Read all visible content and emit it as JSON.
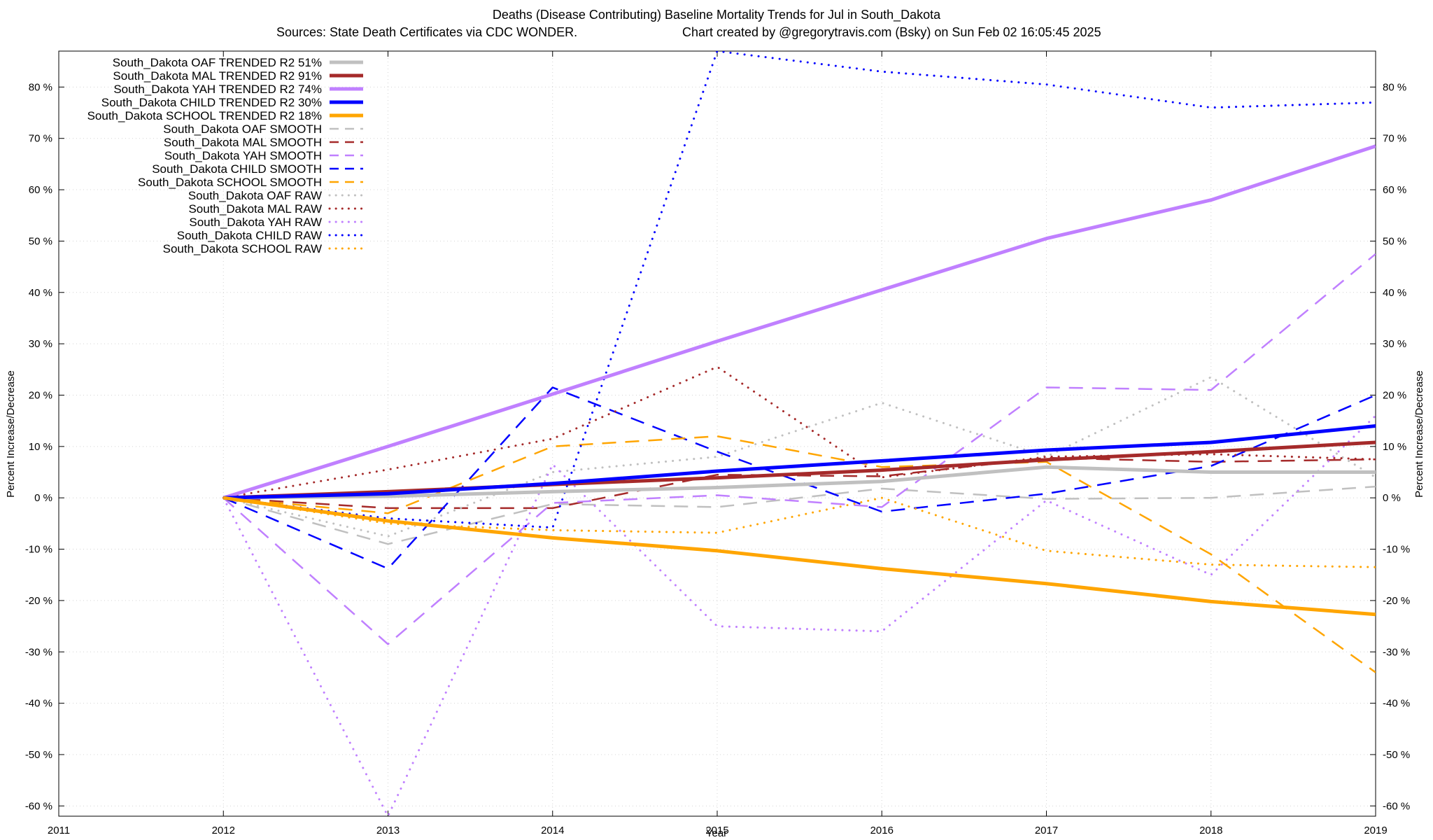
{
  "chart_data": {
    "type": "line",
    "title": "Deaths (Disease Contributing)  Baseline Mortality Trends for Jul in South_Dakota",
    "subtitle_left": "Sources: State Death Certificates via CDC WONDER.",
    "subtitle_right": "Chart created by @gregorytravis.com (Bsky) on Sun Feb 02 16:05:45 2025",
    "xlabel": "Year",
    "ylabel": "Percent Increase/Decrease",
    "y2label": "Percent Increase/Decrease",
    "xlim": [
      2011,
      2019
    ],
    "ylim": [
      -62,
      87
    ],
    "x_ticks": [
      "2011",
      "2012",
      "2013",
      "2014",
      "2015",
      "2016",
      "2017",
      "2018",
      "2019"
    ],
    "y_ticks": [
      "-60 %",
      "-50 %",
      "-40 %",
      "-30 %",
      "-20 %",
      "-10 %",
      "0 %",
      "10 %",
      "20 %",
      "30 %",
      "40 %",
      "50 %",
      "60 %",
      "70 %",
      "80 %"
    ],
    "x": [
      2012,
      2013,
      2014,
      2015,
      2016,
      2017,
      2018,
      2019
    ],
    "grid": true,
    "legend_position": "top-left",
    "series": [
      {
        "name": "South_Dakota OAF TRENDED R2  51%",
        "style": "solid",
        "color": "#c0c0c0",
        "values": [
          0,
          0.3,
          1.2,
          2.0,
          3.2,
          6.0,
          5.0,
          5.0
        ]
      },
      {
        "name": "South_Dakota MAL TRENDED R2  91%",
        "style": "solid",
        "color": "#a52a2a",
        "values": [
          0,
          1.2,
          2.6,
          3.9,
          5.4,
          7.4,
          9.0,
          10.8
        ]
      },
      {
        "name": "South_Dakota YAH TRENDED R2  74%",
        "style": "solid",
        "color": "#c080ff",
        "values": [
          0,
          10.0,
          20.2,
          30.5,
          40.5,
          50.5,
          58.0,
          68.5
        ]
      },
      {
        "name": "South_Dakota CHILD TRENDED R2  30%",
        "style": "solid",
        "color": "#0000ff",
        "values": [
          0,
          0.8,
          2.8,
          5.2,
          7.2,
          9.3,
          10.8,
          14.0
        ]
      },
      {
        "name": "South_Dakota SCHOOL TRENDED R2  18%",
        "style": "solid",
        "color": "#ffa500",
        "values": [
          0,
          -4.5,
          -7.8,
          -10.3,
          -13.8,
          -16.7,
          -20.2,
          -22.7
        ]
      },
      {
        "name": "South_Dakota OAF SMOOTH",
        "style": "dashed",
        "color": "#c0c0c0",
        "values": [
          0,
          -9.0,
          -1.2,
          -1.8,
          1.8,
          -0.2,
          0,
          2.2
        ]
      },
      {
        "name": "South_Dakota MAL SMOOTH",
        "style": "dashed",
        "color": "#a52a2a",
        "values": [
          0,
          -2.0,
          -2.0,
          4.5,
          4.2,
          7.8,
          7.0,
          7.5
        ]
      },
      {
        "name": "South_Dakota YAH SMOOTH",
        "style": "dashed",
        "color": "#c080ff",
        "values": [
          0,
          -28.5,
          -1.0,
          0.5,
          -1.8,
          21.5,
          21.0,
          47.5
        ]
      },
      {
        "name": "South_Dakota CHILD SMOOTH",
        "style": "dashed",
        "color": "#0000ff",
        "values": [
          0,
          -13.8,
          21.5,
          9.0,
          -2.7,
          0.8,
          6.2,
          20.0
        ]
      },
      {
        "name": "South_Dakota SCHOOL SMOOTH",
        "style": "dashed",
        "color": "#ffa500",
        "values": [
          0,
          -3.0,
          10.0,
          12.0,
          6.0,
          7.0,
          -11.0,
          -34.0
        ]
      },
      {
        "name": "South_Dakota OAF RAW",
        "style": "dotted",
        "color": "#c0c0c0",
        "values": [
          0,
          -7.5,
          5.0,
          8.0,
          18.5,
          8.0,
          23.5,
          4.0
        ]
      },
      {
        "name": "South_Dakota MAL RAW",
        "style": "dotted",
        "color": "#a52a2a",
        "values": [
          0,
          5.5,
          11.5,
          25.5,
          4.0,
          8.0,
          8.5,
          7.5
        ]
      },
      {
        "name": "South_Dakota YAH RAW",
        "style": "dotted",
        "color": "#c080ff",
        "values": [
          0,
          -62,
          6.5,
          -25.0,
          -26.0,
          -0.5,
          -15.0,
          16.0
        ]
      },
      {
        "name": "South_Dakota CHILD RAW",
        "style": "dotted",
        "color": "#0000ff",
        "values": [
          0,
          -4.0,
          -5.8,
          87.0,
          83.0,
          80.5,
          76.0,
          77.0
        ]
      },
      {
        "name": "South_Dakota SCHOOL RAW",
        "style": "dotted",
        "color": "#ffa500",
        "values": [
          0,
          -5.0,
          -6.3,
          -6.8,
          0,
          -10.3,
          -13.0,
          -13.5
        ]
      }
    ]
  }
}
